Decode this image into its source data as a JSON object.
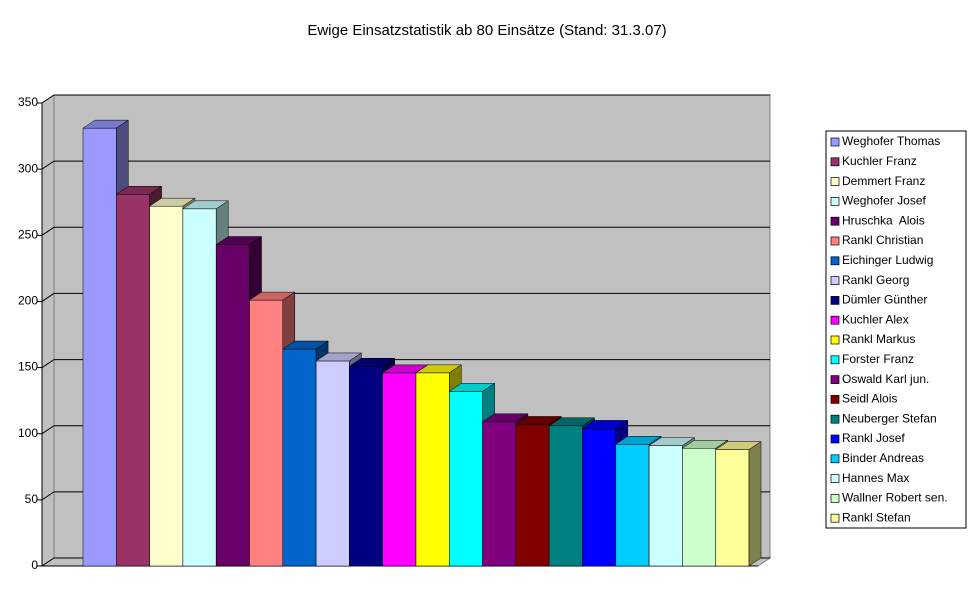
{
  "chart_data": {
    "type": "bar3d",
    "title": "Ewige Einsatzstatistik ab 80 Einsätze (Stand: 31.3.07)",
    "ylim": [
      0,
      350
    ],
    "yticks": [
      0,
      50,
      100,
      150,
      200,
      250,
      300,
      350
    ],
    "grid": true,
    "legend": "right",
    "series": [
      {
        "name": "Weghofer Thomas",
        "color": "#9999FF",
        "values": [
          331
        ]
      },
      {
        "name": "Kuchler Franz",
        "color": "#993366",
        "values": [
          281
        ]
      },
      {
        "name": "Demmert Franz",
        "color": "#FFFFCC",
        "values": [
          272
        ]
      },
      {
        "name": "Weghofer Josef",
        "color": "#CCFFFF",
        "values": [
          270
        ]
      },
      {
        "name": "Hruschka  Alois",
        "color": "#660066",
        "values": [
          243
        ]
      },
      {
        "name": "Rankl Christian",
        "color": "#FF8080",
        "values": [
          201
        ]
      },
      {
        "name": "Eichinger Ludwig",
        "color": "#0066CC",
        "values": [
          164
        ]
      },
      {
        "name": "Rankl Georg",
        "color": "#CCCCFF",
        "values": [
          155
        ]
      },
      {
        "name": "Dümler Günther",
        "color": "#000080",
        "values": [
          151
        ]
      },
      {
        "name": "Kuchler Alex",
        "color": "#FF00FF",
        "values": [
          146
        ]
      },
      {
        "name": "Rankl Markus",
        "color": "#FFFF00",
        "values": [
          146
        ]
      },
      {
        "name": "Forster Franz",
        "color": "#00FFFF",
        "values": [
          132
        ]
      },
      {
        "name": "Oswald Karl jun.",
        "color": "#800080",
        "values": [
          109
        ]
      },
      {
        "name": "Seidl Alois",
        "color": "#800000",
        "values": [
          107
        ]
      },
      {
        "name": "Neuberger Stefan",
        "color": "#008080",
        "values": [
          106
        ]
      },
      {
        "name": "Rankl Josef",
        "color": "#0000FF",
        "values": [
          104
        ]
      },
      {
        "name": "Binder Andreas",
        "color": "#00CCFF",
        "values": [
          92
        ]
      },
      {
        "name": "Hannes Max",
        "color": "#CCFFFF",
        "values": [
          91
        ]
      },
      {
        "name": "Wallner Robert sen.",
        "color": "#CCFFCC",
        "values": [
          89
        ]
      },
      {
        "name": "Rankl Stefan",
        "color": "#FFFF99",
        "values": [
          88
        ]
      }
    ]
  }
}
